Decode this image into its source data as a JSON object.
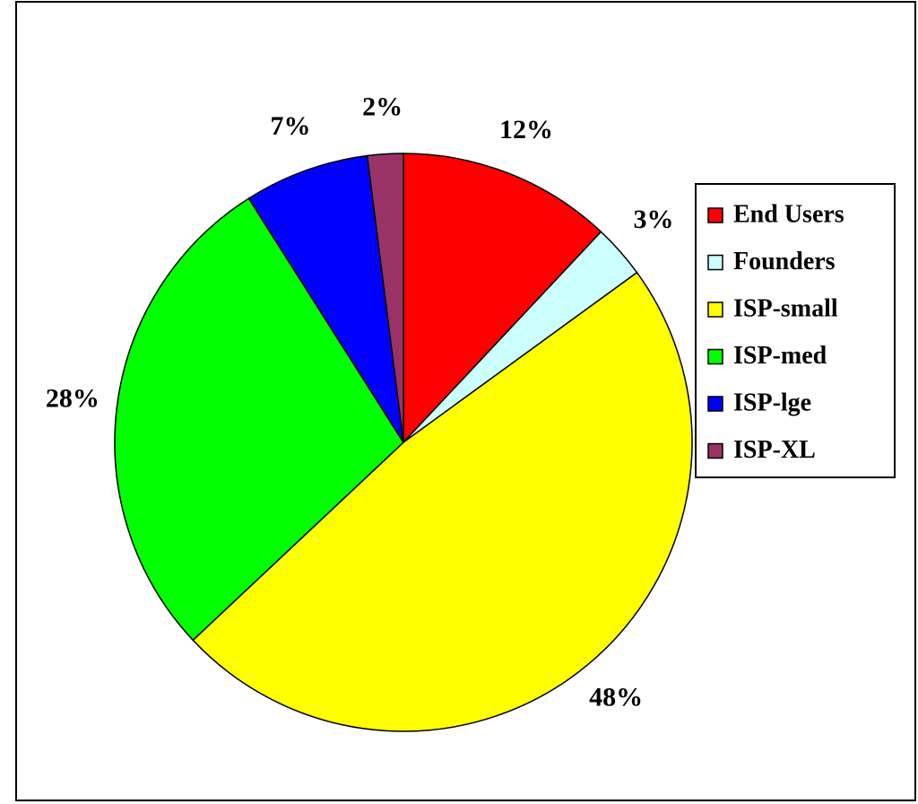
{
  "chart_data": {
    "type": "pie",
    "categories": [
      "End Users",
      "Founders",
      "ISP-small",
      "ISP-med",
      "ISP-lge",
      "ISP-XL"
    ],
    "values": [
      12,
      3,
      48,
      28,
      7,
      2
    ],
    "value_labels": [
      "12%",
      "3%",
      "48%",
      "28%",
      "7%",
      "2%"
    ],
    "colors": [
      "#ff0000",
      "#ccffff",
      "#ffff00",
      "#00ff00",
      "#0000ff",
      "#993366"
    ],
    "legend": "right"
  }
}
